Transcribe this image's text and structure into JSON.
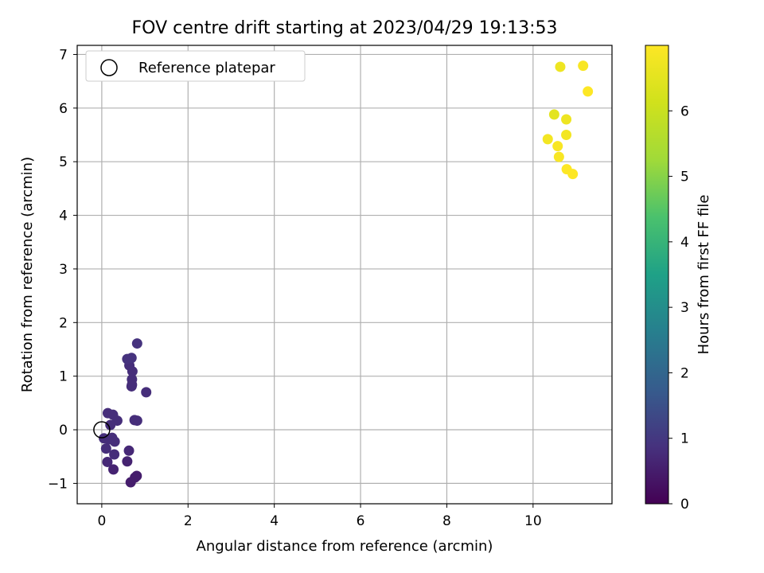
{
  "chart_data": {
    "type": "scatter",
    "title": "FOV centre drift starting at 2023/04/29 19:13:53",
    "xlabel": "Angular distance from reference (arcmin)",
    "ylabel": "Rotation from reference (arcmin)",
    "xlim": [
      -0.57,
      11.83
    ],
    "ylim": [
      -1.38,
      7.17
    ],
    "xticks": [
      0,
      2,
      4,
      6,
      8,
      10
    ],
    "yticks": [
      -1,
      0,
      1,
      2,
      3,
      4,
      5,
      6,
      7
    ],
    "grid": true,
    "legend": {
      "position": "top-left",
      "entries": [
        "Reference platepar"
      ]
    },
    "reference": {
      "x": 0,
      "y": 0
    },
    "colorbar": {
      "label": "Hours from first FF file",
      "colormap": "viridis",
      "range": [
        0,
        7.0
      ],
      "ticks": [
        0,
        1,
        2,
        3,
        4,
        5,
        6
      ]
    },
    "points": [
      {
        "x": 0.14,
        "y": 0.31,
        "c": 0.8
      },
      {
        "x": 0.26,
        "y": 0.28,
        "c": 0.8
      },
      {
        "x": 0.36,
        "y": 0.17,
        "c": 0.8
      },
      {
        "x": 0.2,
        "y": 0.09,
        "c": 0.8
      },
      {
        "x": 0.05,
        "y": -0.16,
        "c": 0.8
      },
      {
        "x": 0.16,
        "y": -0.18,
        "c": 0.8
      },
      {
        "x": 0.24,
        "y": -0.15,
        "c": 0.8
      },
      {
        "x": 0.3,
        "y": -0.22,
        "c": 0.8
      },
      {
        "x": 0.1,
        "y": -0.35,
        "c": 0.8
      },
      {
        "x": 0.29,
        "y": -0.46,
        "c": 0.8
      },
      {
        "x": 0.13,
        "y": -0.6,
        "c": 0.7
      },
      {
        "x": 0.27,
        "y": -0.74,
        "c": 0.6
      },
      {
        "x": 0.63,
        "y": -0.39,
        "c": 0.7
      },
      {
        "x": 0.59,
        "y": -0.59,
        "c": 0.6
      },
      {
        "x": 0.81,
        "y": -0.86,
        "c": 0.5
      },
      {
        "x": 0.77,
        "y": -0.89,
        "c": 0.5
      },
      {
        "x": 0.67,
        "y": -0.98,
        "c": 0.5
      },
      {
        "x": 0.76,
        "y": 0.18,
        "c": 0.8
      },
      {
        "x": 0.82,
        "y": 0.17,
        "c": 0.8
      },
      {
        "x": 1.03,
        "y": 0.7,
        "c": 0.8
      },
      {
        "x": 0.69,
        "y": 0.81,
        "c": 0.8
      },
      {
        "x": 0.7,
        "y": 0.84,
        "c": 0.8
      },
      {
        "x": 0.7,
        "y": 0.94,
        "c": 0.8
      },
      {
        "x": 0.71,
        "y": 1.09,
        "c": 0.8
      },
      {
        "x": 0.64,
        "y": 1.2,
        "c": 0.8
      },
      {
        "x": 0.59,
        "y": 1.32,
        "c": 0.9
      },
      {
        "x": 0.69,
        "y": 1.34,
        "c": 0.9
      },
      {
        "x": 0.82,
        "y": 1.61,
        "c": 0.9
      },
      {
        "x": 10.63,
        "y": 6.77,
        "c": 6.7
      },
      {
        "x": 11.16,
        "y": 6.79,
        "c": 6.9
      },
      {
        "x": 11.27,
        "y": 6.31,
        "c": 7.0
      },
      {
        "x": 10.49,
        "y": 5.88,
        "c": 6.5
      },
      {
        "x": 10.77,
        "y": 5.79,
        "c": 6.7
      },
      {
        "x": 10.77,
        "y": 5.5,
        "c": 6.8
      },
      {
        "x": 10.34,
        "y": 5.42,
        "c": 6.8
      },
      {
        "x": 10.57,
        "y": 5.29,
        "c": 6.9
      },
      {
        "x": 10.6,
        "y": 5.09,
        "c": 6.9
      },
      {
        "x": 10.78,
        "y": 4.86,
        "c": 7.0
      },
      {
        "x": 10.92,
        "y": 4.77,
        "c": 7.0
      }
    ]
  }
}
